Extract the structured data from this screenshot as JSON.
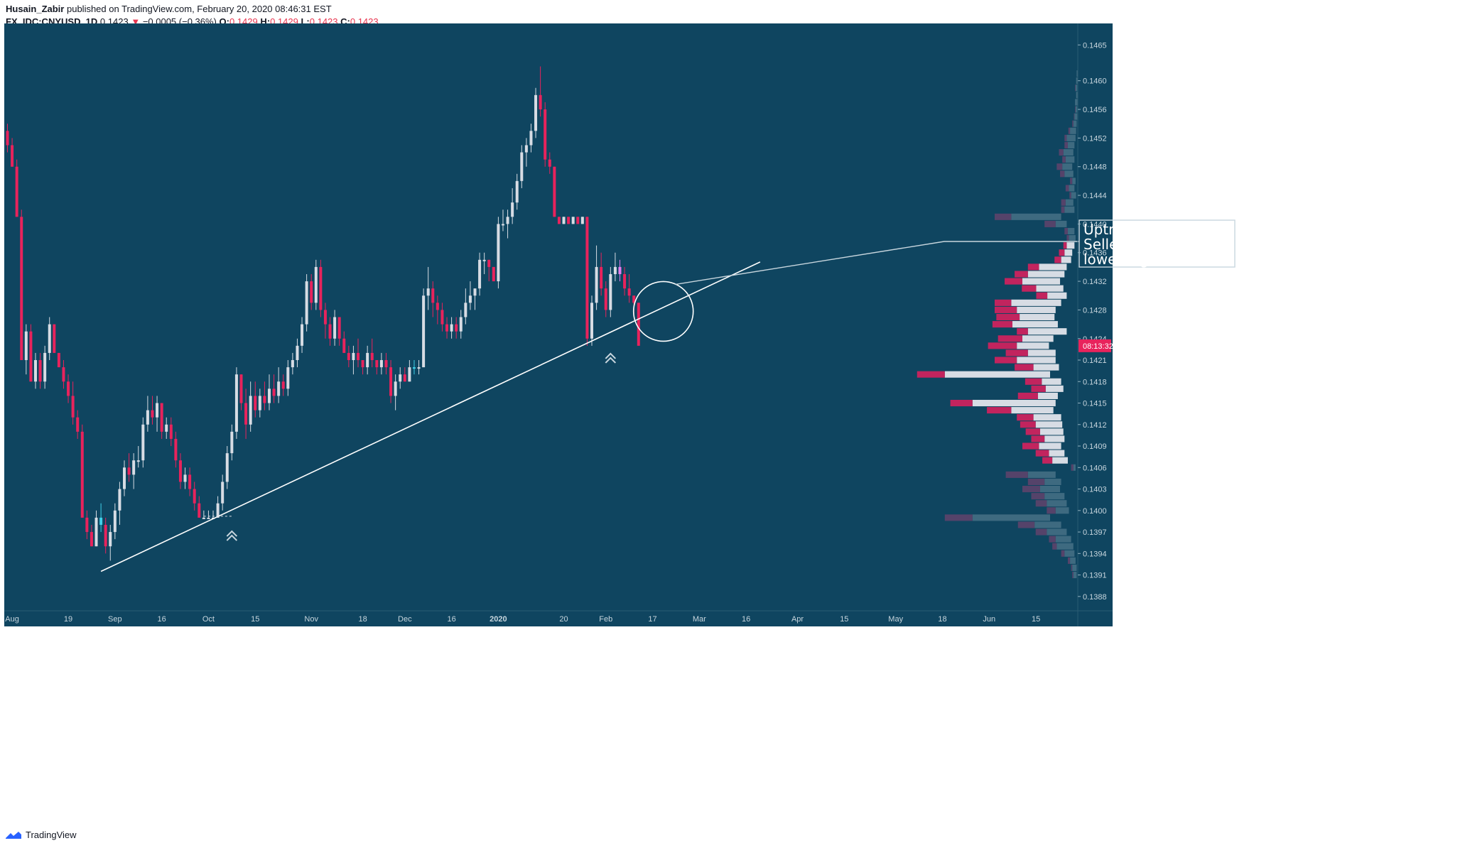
{
  "header": {
    "publisher": "Husain_Zabir",
    "published_text": "published on TradingView.com, February 20, 2020 08:46:31 EST",
    "symbol": "FX_IDC:CNYUSD, 1D",
    "last": "0.1423",
    "change": "−0.0005 (−0.36%)",
    "o_label": "O:",
    "o": "0.1429",
    "h_label": "H:",
    "h": "0.1429",
    "l_label": "L:",
    "l": "0.1423",
    "c_label": "C:",
    "c": "0.1423"
  },
  "footer": {
    "brand": "TradingView"
  },
  "colors": {
    "background": "#0f4560",
    "up": "#d7dce4",
    "down": "#e8235c",
    "axis_bg": "#0f4560",
    "price_tag": "#e8235c",
    "volume_profile": "#3e6a80"
  },
  "annotation": {
    "lines": [
      "Uptrend has broken",
      "Sellers will look for",
      "lower highs to short"
    ]
  },
  "chart_data": {
    "type": "candlestick",
    "symbol": "FX_IDC:CNYUSD",
    "interval": "1D",
    "y_axis": {
      "position": "right",
      "ylim": [
        0.1386,
        0.1468
      ],
      "ticks": [
        "0.1465",
        "0.1460",
        "0.1456",
        "0.1452",
        "0.1448",
        "0.1444",
        "0.1440",
        "0.1436",
        "0.1432",
        "0.1428",
        "0.1424",
        "0.1421",
        "0.1418",
        "0.1415",
        "0.1412",
        "0.1409",
        "0.1406",
        "0.1403",
        "0.1400",
        "0.1397",
        "0.1394",
        "0.1391",
        "0.1388"
      ]
    },
    "x_axis": {
      "ticks": [
        {
          "label": "Aug",
          "bar": 1
        },
        {
          "label": "19",
          "bar": 13
        },
        {
          "label": "Sep",
          "bar": 23
        },
        {
          "label": "16",
          "bar": 33
        },
        {
          "label": "Oct",
          "bar": 43
        },
        {
          "label": "15",
          "bar": 53
        },
        {
          "label": "Nov",
          "bar": 65
        },
        {
          "label": "18",
          "bar": 76
        },
        {
          "label": "Dec",
          "bar": 85
        },
        {
          "label": "16",
          "bar": 95
        },
        {
          "label": "2020",
          "bar": 105
        },
        {
          "label": "20",
          "bar": 119
        },
        {
          "label": "Feb",
          "bar": 128
        },
        {
          "label": "17",
          "bar": 138
        },
        {
          "label": "Mar",
          "bar": 148
        },
        {
          "label": "16",
          "bar": 158
        },
        {
          "label": "Apr",
          "bar": 169
        },
        {
          "label": "15",
          "bar": 179
        },
        {
          "label": "May",
          "bar": 190
        },
        {
          "label": "18",
          "bar": 200
        },
        {
          "label": "Jun",
          "bar": 210
        },
        {
          "label": "15",
          "bar": 220
        }
      ]
    },
    "current_price": 0.1423,
    "countdown": "08:13:32",
    "trendline": {
      "start": {
        "bar": 20,
        "price": 0.13915
      },
      "end": {
        "bar": 161,
        "price": 0.14347
      }
    },
    "markers": [
      {
        "type": "double-chevron-up",
        "bar": 48,
        "price": 0.13967
      },
      {
        "type": "double-chevron-up",
        "bar": 129,
        "price": 0.14215
      }
    ],
    "highlight_circle": {
      "bar": 140,
      "price": 0.14278
    },
    "candles": [
      [
        0.1453,
        0.1454,
        0.145,
        0.1451
      ],
      [
        0.1451,
        0.1452,
        0.1448,
        0.1448
      ],
      [
        0.1448,
        0.1449,
        0.1441,
        0.1441
      ],
      [
        0.1441,
        0.1442,
        0.1421,
        0.1421
      ],
      [
        0.1421,
        0.1426,
        0.1419,
        0.1425
      ],
      [
        0.1425,
        0.1426,
        0.1418,
        0.1418
      ],
      [
        0.1418,
        0.1422,
        0.1417,
        0.1421
      ],
      [
        0.1421,
        0.1422,
        0.1417,
        0.1418
      ],
      [
        0.1418,
        0.1423,
        0.1417,
        0.1422
      ],
      [
        0.1422,
        0.1427,
        0.1421,
        0.1426
      ],
      [
        0.1426,
        0.1426,
        0.1422,
        0.1422
      ],
      [
        0.1422,
        0.1422,
        0.142,
        0.142
      ],
      [
        0.142,
        0.1421,
        0.1417,
        0.1418
      ],
      [
        0.1418,
        0.1419,
        0.1415,
        0.1416
      ],
      [
        0.1416,
        0.1418,
        0.1412,
        0.1413
      ],
      [
        0.1413,
        0.1414,
        0.141,
        0.1411
      ],
      [
        0.1411,
        0.1412,
        0.1399,
        0.1399
      ],
      [
        0.1399,
        0.14,
        0.1396,
        0.1397
      ],
      [
        0.1397,
        0.1398,
        0.1395,
        0.1395
      ],
      [
        0.1395,
        0.14,
        0.1395,
        0.1399
      ],
      [
        0.1399,
        0.1401,
        0.1397,
        0.1398
      ],
      [
        0.1398,
        0.1399,
        0.1394,
        0.1395
      ],
      [
        0.1395,
        0.1398,
        0.1393,
        0.1397
      ],
      [
        0.1397,
        0.1401,
        0.1396,
        0.14
      ],
      [
        0.14,
        0.1404,
        0.1398,
        0.1403
      ],
      [
        0.1403,
        0.1407,
        0.1402,
        0.1406
      ],
      [
        0.1406,
        0.1408,
        0.1404,
        0.1405
      ],
      [
        0.1405,
        0.1408,
        0.1403,
        0.1407
      ],
      [
        0.1407,
        0.1409,
        0.1406,
        0.1407
      ],
      [
        0.1407,
        0.1413,
        0.1406,
        0.1412
      ],
      [
        0.1412,
        0.1416,
        0.1411,
        0.1414
      ],
      [
        0.1414,
        0.1416,
        0.1412,
        0.1413
      ],
      [
        0.1413,
        0.1416,
        0.1411,
        0.1415
      ],
      [
        0.1415,
        0.1415,
        0.141,
        0.1411
      ],
      [
        0.1411,
        0.1413,
        0.141,
        0.1412
      ],
      [
        0.1412,
        0.1413,
        0.1409,
        0.141
      ],
      [
        0.141,
        0.1411,
        0.1406,
        0.1407
      ],
      [
        0.1407,
        0.1408,
        0.1403,
        0.1404
      ],
      [
        0.1404,
        0.1406,
        0.1403,
        0.1405
      ],
      [
        0.1405,
        0.1406,
        0.1402,
        0.1403
      ],
      [
        0.1403,
        0.1404,
        0.14,
        0.1401
      ],
      [
        0.1401,
        0.1402,
        0.1399,
        0.1399
      ],
      [
        0.1399,
        0.14,
        0.1399,
        0.1399
      ],
      [
        0.1399,
        0.14,
        0.1399,
        0.1399
      ],
      [
        0.1399,
        0.14,
        0.1399,
        0.1399
      ],
      [
        0.1399,
        0.1402,
        0.1399,
        0.1401
      ],
      [
        0.1401,
        0.1405,
        0.14,
        0.1404
      ],
      [
        0.1404,
        0.1409,
        0.1403,
        0.1408
      ],
      [
        0.1408,
        0.1412,
        0.1407,
        0.1411
      ],
      [
        0.1411,
        0.142,
        0.141,
        0.1419
      ],
      [
        0.1419,
        0.1419,
        0.1414,
        0.1415
      ],
      [
        0.1415,
        0.1417,
        0.141,
        0.1412
      ],
      [
        0.1412,
        0.1418,
        0.1411,
        0.1416
      ],
      [
        0.1416,
        0.1418,
        0.1413,
        0.1414
      ],
      [
        0.1414,
        0.1417,
        0.1413,
        0.1416
      ],
      [
        0.1416,
        0.1418,
        0.1414,
        0.1415
      ],
      [
        0.1415,
        0.1419,
        0.1414,
        0.1417
      ],
      [
        0.1417,
        0.1419,
        0.1415,
        0.1416
      ],
      [
        0.1416,
        0.142,
        0.1415,
        0.1418
      ],
      [
        0.1418,
        0.1419,
        0.1416,
        0.1417
      ],
      [
        0.1417,
        0.1421,
        0.1416,
        0.142
      ],
      [
        0.142,
        0.1422,
        0.1419,
        0.1421
      ],
      [
        0.1421,
        0.1424,
        0.142,
        0.1423
      ],
      [
        0.1423,
        0.1427,
        0.1422,
        0.1426
      ],
      [
        0.1426,
        0.1433,
        0.1425,
        0.1432
      ],
      [
        0.1432,
        0.1433,
        0.1428,
        0.1429
      ],
      [
        0.1429,
        0.1435,
        0.1428,
        0.1434
      ],
      [
        0.1434,
        0.1435,
        0.1427,
        0.1428
      ],
      [
        0.1428,
        0.1429,
        0.1424,
        0.1426
      ],
      [
        0.1426,
        0.1427,
        0.1423,
        0.1424
      ],
      [
        0.1424,
        0.1428,
        0.1423,
        0.1427
      ],
      [
        0.1427,
        0.1427,
        0.1423,
        0.1424
      ],
      [
        0.1424,
        0.1425,
        0.1422,
        0.1422
      ],
      [
        0.1422,
        0.1423,
        0.142,
        0.1421
      ],
      [
        0.1421,
        0.1423,
        0.1419,
        0.1422
      ],
      [
        0.1422,
        0.1424,
        0.142,
        0.1421
      ],
      [
        0.1421,
        0.1421,
        0.1419,
        0.142
      ],
      [
        0.142,
        0.1423,
        0.1419,
        0.1422
      ],
      [
        0.1422,
        0.1424,
        0.142,
        0.1421
      ],
      [
        0.1421,
        0.1421,
        0.1419,
        0.142
      ],
      [
        0.142,
        0.1422,
        0.1419,
        0.1421
      ],
      [
        0.1421,
        0.1422,
        0.1419,
        0.142
      ],
      [
        0.142,
        0.1421,
        0.1415,
        0.1416
      ],
      [
        0.1416,
        0.1419,
        0.1414,
        0.1418
      ],
      [
        0.1418,
        0.142,
        0.1417,
        0.1419
      ],
      [
        0.1419,
        0.142,
        0.1418,
        0.1418
      ],
      [
        0.1418,
        0.1421,
        0.1418,
        0.142
      ],
      [
        0.142,
        0.1421,
        0.1419,
        0.142
      ],
      [
        0.142,
        0.1421,
        0.1419,
        0.142
      ],
      [
        0.142,
        0.1431,
        0.142,
        0.143
      ],
      [
        0.143,
        0.1434,
        0.1428,
        0.1431
      ],
      [
        0.1431,
        0.1432,
        0.1427,
        0.1429
      ],
      [
        0.1429,
        0.143,
        0.1426,
        0.1428
      ],
      [
        0.1428,
        0.1429,
        0.1425,
        0.1426
      ],
      [
        0.1426,
        0.1427,
        0.1424,
        0.1425
      ],
      [
        0.1425,
        0.1427,
        0.1424,
        0.1426
      ],
      [
        0.1426,
        0.1427,
        0.1424,
        0.1425
      ],
      [
        0.1425,
        0.1428,
        0.1424,
        0.1427
      ],
      [
        0.1427,
        0.1431,
        0.1426,
        0.1429
      ],
      [
        0.1429,
        0.1432,
        0.1428,
        0.143
      ],
      [
        0.143,
        0.1431,
        0.1428,
        0.1431
      ],
      [
        0.1431,
        0.1436,
        0.143,
        0.1435
      ],
      [
        0.1435,
        0.1436,
        0.1433,
        0.1435
      ],
      [
        0.1435,
        0.1435,
        0.1432,
        0.1434
      ],
      [
        0.1434,
        0.1434,
        0.1432,
        0.1432
      ],
      [
        0.1432,
        0.1441,
        0.1431,
        0.144
      ],
      [
        0.144,
        0.1442,
        0.1439,
        0.144
      ],
      [
        0.144,
        0.1442,
        0.1438,
        0.1441
      ],
      [
        0.1441,
        0.1445,
        0.144,
        0.1443
      ],
      [
        0.1443,
        0.1447,
        0.1442,
        0.1446
      ],
      [
        0.1446,
        0.1451,
        0.1445,
        0.145
      ],
      [
        0.145,
        0.1452,
        0.1448,
        0.1451
      ],
      [
        0.1451,
        0.1454,
        0.145,
        0.1453
      ],
      [
        0.1453,
        0.1459,
        0.1452,
        0.1458
      ],
      [
        0.1458,
        0.1462,
        0.1455,
        0.1456
      ],
      [
        0.1456,
        0.1457,
        0.1448,
        0.1449
      ],
      [
        0.1449,
        0.145,
        0.1447,
        0.1448
      ],
      [
        0.1448,
        0.1448,
        0.1441,
        0.1441
      ],
      [
        0.1441,
        0.1441,
        0.144,
        0.144
      ],
      [
        0.144,
        0.1441,
        0.144,
        0.1441
      ],
      [
        0.1441,
        0.1441,
        0.144,
        0.144
      ],
      [
        0.144,
        0.1441,
        0.144,
        0.1441
      ],
      [
        0.1441,
        0.1441,
        0.144,
        0.144
      ],
      [
        0.144,
        0.1441,
        0.144,
        0.1441
      ],
      [
        0.1441,
        0.1441,
        0.1423,
        0.1424
      ],
      [
        0.1424,
        0.143,
        0.1423,
        0.1429
      ],
      [
        0.1429,
        0.1437,
        0.1428,
        0.1434
      ],
      [
        0.1434,
        0.1436,
        0.143,
        0.1431
      ],
      [
        0.1431,
        0.1432,
        0.1427,
        0.1428
      ],
      [
        0.1428,
        0.1434,
        0.1427,
        0.1433
      ],
      [
        0.1433,
        0.1436,
        0.1432,
        0.1434
      ],
      [
        0.1434,
        0.1435,
        0.1432,
        0.1433
      ],
      [
        0.1433,
        0.1434,
        0.143,
        0.1431
      ],
      [
        0.1431,
        0.1433,
        0.1429,
        0.143
      ],
      [
        0.143,
        0.143,
        0.1427,
        0.1429
      ],
      [
        0.1429,
        0.1429,
        0.1423,
        0.1423
      ]
    ],
    "special_candle_colors": [
      {
        "bar": 20,
        "color": "#3fd0e8"
      },
      {
        "bar": 87,
        "color": "#3fd0e8"
      },
      {
        "bar": 131,
        "color": "#e67cf0"
      }
    ],
    "volume_profile": [
      [
        0.1461,
        2,
        0
      ],
      [
        0.146,
        3,
        0
      ],
      [
        0.1459,
        4,
        1
      ],
      [
        0.1458,
        3,
        0
      ],
      [
        0.1457,
        5,
        0
      ],
      [
        0.1456,
        4,
        1
      ],
      [
        0.1455,
        6,
        1
      ],
      [
        0.1454,
        8,
        2
      ],
      [
        0.1453,
        14,
        3
      ],
      [
        0.1452,
        20,
        4
      ],
      [
        0.1451,
        18,
        6
      ],
      [
        0.145,
        26,
        8
      ],
      [
        0.1449,
        22,
        6
      ],
      [
        0.1448,
        28,
        10
      ],
      [
        0.1447,
        24,
        8
      ],
      [
        0.1446,
        10,
        4
      ],
      [
        0.1445,
        16,
        6
      ],
      [
        0.1444,
        12,
        3
      ],
      [
        0.1443,
        22,
        8
      ],
      [
        0.1442,
        24,
        6
      ],
      [
        0.1441,
        120,
        30
      ],
      [
        0.144,
        40,
        20
      ],
      [
        0.1439,
        18,
        6
      ],
      [
        0.1438,
        16,
        4
      ],
      [
        0.1437,
        20,
        6
      ],
      [
        0.1436,
        24,
        10
      ],
      [
        0.1435,
        30,
        12
      ],
      [
        0.1434,
        70,
        20
      ],
      [
        0.1433,
        90,
        24
      ],
      [
        0.1432,
        100,
        32
      ],
      [
        0.1431,
        75,
        26
      ],
      [
        0.143,
        55,
        20
      ],
      [
        0.1429,
        120,
        30
      ],
      [
        0.1428,
        110,
        40
      ],
      [
        0.1427,
        105,
        42
      ],
      [
        0.1426,
        118,
        36
      ],
      [
        0.1425,
        90,
        20
      ],
      [
        0.1424,
        100,
        44
      ],
      [
        0.1423,
        110,
        52
      ],
      [
        0.1422,
        90,
        40
      ],
      [
        0.1421,
        110,
        40
      ],
      [
        0.142,
        80,
        34
      ],
      [
        0.1419,
        240,
        50
      ],
      [
        0.1418,
        65,
        30
      ],
      [
        0.1417,
        58,
        26
      ],
      [
        0.1416,
        72,
        36
      ],
      [
        0.1415,
        190,
        40
      ],
      [
        0.1414,
        120,
        44
      ],
      [
        0.1413,
        80,
        30
      ],
      [
        0.1412,
        76,
        28
      ],
      [
        0.1411,
        68,
        26
      ],
      [
        0.141,
        60,
        24
      ],
      [
        0.1409,
        70,
        30
      ],
      [
        0.1408,
        52,
        24
      ],
      [
        0.1407,
        46,
        18
      ],
      [
        0.1406,
        8,
        4
      ],
      [
        0.1405,
        90,
        40
      ],
      [
        0.1404,
        60,
        30
      ],
      [
        0.1403,
        68,
        32
      ],
      [
        0.1402,
        60,
        24
      ],
      [
        0.1401,
        56,
        20
      ],
      [
        0.14,
        40,
        16
      ],
      [
        0.1399,
        190,
        50
      ],
      [
        0.1398,
        78,
        30
      ],
      [
        0.1397,
        56,
        20
      ],
      [
        0.1396,
        40,
        12
      ],
      [
        0.1395,
        38,
        8
      ],
      [
        0.1394,
        24,
        6
      ],
      [
        0.1393,
        14,
        4
      ],
      [
        0.1392,
        10,
        2
      ],
      [
        0.1391,
        8,
        2
      ]
    ]
  }
}
